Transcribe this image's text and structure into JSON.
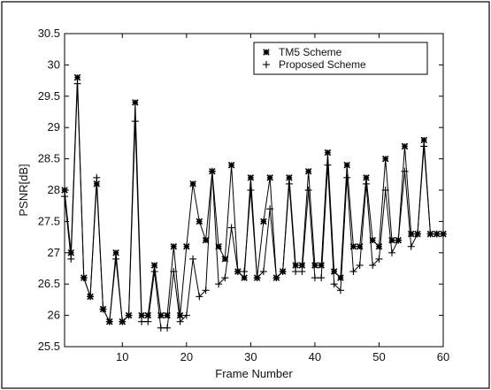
{
  "chart_data": {
    "type": "line",
    "xlabel": "Frame Number",
    "ylabel": "PSNR[dB]",
    "xlim": [
      1,
      60
    ],
    "ylim": [
      25.5,
      30.5
    ],
    "xticks": [
      10,
      20,
      30,
      40,
      50,
      60
    ],
    "xtick_labels": [
      "10",
      "20",
      "30",
      "40",
      "50",
      "60"
    ],
    "yticks": [
      25.5,
      26,
      26.5,
      27,
      27.5,
      28,
      28.5,
      29,
      29.5,
      30,
      30.5
    ],
    "ytick_labels": [
      "25.5",
      "26",
      "26.5",
      "27",
      "27.5",
      "28",
      "28.5",
      "29",
      "29.5",
      "30",
      "30.5"
    ],
    "grid": false,
    "legend_position": "top-right",
    "x": [
      1,
      2,
      3,
      4,
      5,
      6,
      7,
      8,
      9,
      10,
      11,
      12,
      13,
      14,
      15,
      16,
      17,
      18,
      19,
      20,
      21,
      22,
      23,
      24,
      25,
      26,
      27,
      28,
      29,
      30,
      31,
      32,
      33,
      34,
      35,
      36,
      37,
      38,
      39,
      40,
      41,
      42,
      43,
      44,
      45,
      46,
      47,
      48,
      49,
      50,
      51,
      52,
      53,
      54,
      55,
      56,
      57,
      58,
      59,
      60
    ],
    "series": [
      {
        "name": "TM5 Scheme",
        "marker": "*",
        "values": [
          28.0,
          27.0,
          29.8,
          26.6,
          26.3,
          28.1,
          26.1,
          25.9,
          27.0,
          25.9,
          26.0,
          29.4,
          26.0,
          26.0,
          26.8,
          26.0,
          26.0,
          27.1,
          26.0,
          27.1,
          28.1,
          27.5,
          27.2,
          28.3,
          27.1,
          26.9,
          28.4,
          26.7,
          26.6,
          28.2,
          26.6,
          27.5,
          28.2,
          26.6,
          26.7,
          28.2,
          26.8,
          26.8,
          28.3,
          26.8,
          26.8,
          28.6,
          26.7,
          26.6,
          28.4,
          27.1,
          27.1,
          28.2,
          27.2,
          27.1,
          28.5,
          27.2,
          27.2,
          28.7,
          27.3,
          27.3,
          28.8,
          27.3,
          27.3,
          27.3
        ]
      },
      {
        "name": "Proposed Scheme",
        "marker": "+",
        "values": [
          27.9,
          26.9,
          29.7,
          26.6,
          26.3,
          28.2,
          26.1,
          25.9,
          26.9,
          25.9,
          26.0,
          29.1,
          25.9,
          25.9,
          26.7,
          25.8,
          25.8,
          26.7,
          25.9,
          26.0,
          26.9,
          26.3,
          26.4,
          28.3,
          26.5,
          26.6,
          27.4,
          26.7,
          26.7,
          28.0,
          26.6,
          26.7,
          27.7,
          26.6,
          26.7,
          28.1,
          26.7,
          26.7,
          28.0,
          26.6,
          26.6,
          28.4,
          26.5,
          26.4,
          28.2,
          26.7,
          26.8,
          28.1,
          26.8,
          26.9,
          28.0,
          27.0,
          27.2,
          28.3,
          27.1,
          27.3,
          28.7,
          27.3,
          27.3,
          27.3
        ]
      }
    ]
  }
}
